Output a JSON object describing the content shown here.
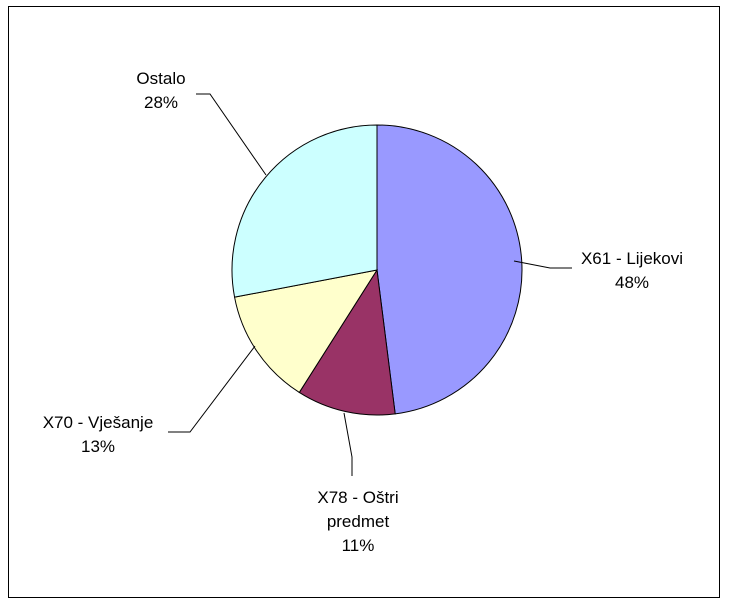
{
  "chart_data": {
    "type": "pie",
    "title": "",
    "start_angle_deg": 0,
    "direction": "clockwise",
    "slices": [
      {
        "label_lines": [
          "X61 - Lijekovi"
        ],
        "value": 48,
        "pct_label": "48%",
        "color": "#9999ff"
      },
      {
        "label_lines": [
          "X78 - Oštri",
          "predmet"
        ],
        "value": 11,
        "pct_label": "11%",
        "color": "#993366"
      },
      {
        "label_lines": [
          "X70 - Vješanje"
        ],
        "value": 13,
        "pct_label": "13%",
        "color": "#ffffcc"
      },
      {
        "label_lines": [
          "Ostalo"
        ],
        "value": 28,
        "pct_label": "28%",
        "color": "#ccffff"
      }
    ],
    "legend": "none",
    "leader_lines": true
  }
}
